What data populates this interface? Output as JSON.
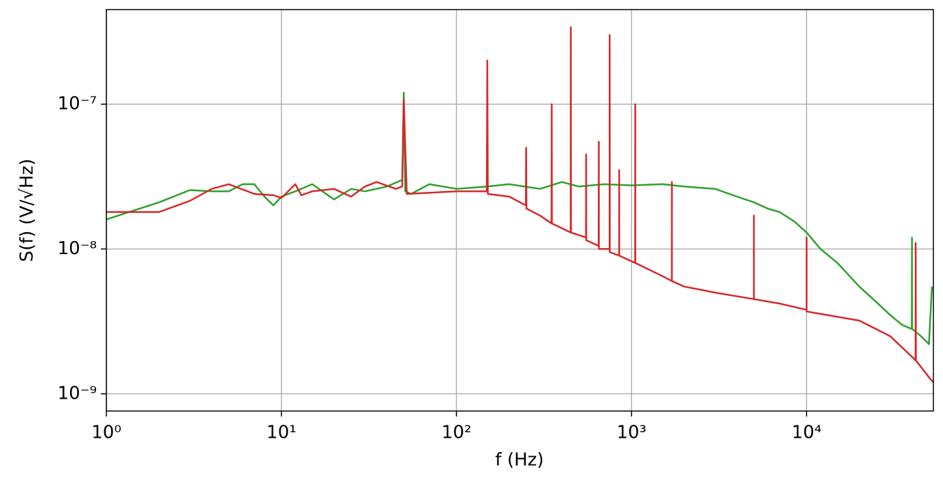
{
  "chart_data": {
    "type": "line",
    "xlabel": "f (Hz)",
    "ylabel": "S(f) (V/√Hz)",
    "xscale": "log",
    "yscale": "log",
    "grid": true,
    "xlim": [
      1,
      53000
    ],
    "ylim": [
      7.6e-10,
      4.5e-07
    ],
    "xticks": [
      {
        "value": 1,
        "label": "10⁰"
      },
      {
        "value": 10,
        "label": "10¹"
      },
      {
        "value": 100,
        "label": "10²"
      },
      {
        "value": 1000,
        "label": "10³"
      },
      {
        "value": 10000,
        "label": "10⁴"
      }
    ],
    "yticks": [
      {
        "value": 1e-09,
        "label": "10⁻⁹"
      },
      {
        "value": 1e-08,
        "label": "10⁻⁸"
      },
      {
        "value": 1e-07,
        "label": "10⁻⁷"
      }
    ],
    "series": [
      {
        "color": "#2ca02c",
        "x": [
          1,
          2,
          3,
          4,
          5,
          6,
          7,
          8,
          9,
          10,
          12,
          15,
          18,
          20,
          25,
          30,
          40,
          49,
          50,
          51,
          55,
          70,
          100,
          150,
          200,
          300,
          400,
          500,
          700,
          1000,
          1500,
          2000,
          3000,
          4000,
          5000,
          6000,
          7000,
          8500,
          10000,
          12000,
          15000,
          17000,
          20000,
          25000,
          30000,
          35000,
          39900,
          40000,
          40100,
          45000,
          50000,
          52000
        ],
        "values": [
          1.6e-08,
          2.1e-08,
          2.55e-08,
          2.5e-08,
          2.5e-08,
          2.8e-08,
          2.8e-08,
          2.3e-08,
          2e-08,
          2.3e-08,
          2.5e-08,
          2.8e-08,
          2.4e-08,
          2.2e-08,
          2.6e-08,
          2.5e-08,
          2.7e-08,
          3e-08,
          1.2e-07,
          2.5e-08,
          2.4e-08,
          2.8e-08,
          2.6e-08,
          2.7e-08,
          2.8e-08,
          2.6e-08,
          2.9e-08,
          2.7e-08,
          2.8e-08,
          2.75e-08,
          2.8e-08,
          2.7e-08,
          2.6e-08,
          2.3e-08,
          2.1e-08,
          1.9e-08,
          1.8e-08,
          1.55e-08,
          1.3e-08,
          1e-08,
          8e-09,
          6.8e-09,
          5.5e-09,
          4.3e-09,
          3.5e-09,
          3e-09,
          2.8e-09,
          1.2e-08,
          2.8e-09,
          2.5e-09,
          2.2e-09,
          5.5e-09
        ]
      },
      {
        "color": "#d62728",
        "x": [
          1,
          2,
          3,
          4,
          5,
          7,
          9,
          10,
          12,
          13,
          15,
          20,
          25,
          30,
          35,
          45,
          49,
          50,
          52,
          100,
          149,
          150,
          151,
          200,
          249,
          250,
          251,
          300,
          349,
          350,
          351,
          449,
          450,
          451,
          549,
          550,
          551,
          649,
          650,
          651,
          749,
          750,
          751,
          849,
          850,
          851,
          1049,
          1050,
          1051,
          1500,
          1699,
          1700,
          1701,
          2000,
          3000,
          4999,
          5000,
          5001,
          7000,
          9999,
          10000,
          10001,
          15000,
          20000,
          30000,
          40000,
          41900,
          42000,
          42100,
          50000,
          53000
        ],
        "values": [
          1.8e-08,
          1.8e-08,
          2.15e-08,
          2.6e-08,
          2.8e-08,
          2.4e-08,
          2.35e-08,
          2.25e-08,
          2.8e-08,
          2.35e-08,
          2.5e-08,
          2.6e-08,
          2.3e-08,
          2.7e-08,
          2.9e-08,
          2.6e-08,
          2.7e-08,
          1.08e-07,
          2.4e-08,
          2.5e-08,
          2.5e-08,
          2e-07,
          2.4e-08,
          2.3e-08,
          2e-08,
          5e-08,
          1.9e-08,
          1.7e-08,
          1.5e-08,
          1e-07,
          1.5e-08,
          1.3e-08,
          3.4e-07,
          1.3e-08,
          1.2e-08,
          4.5e-08,
          1.15e-08,
          1.05e-08,
          5.5e-08,
          1e-08,
          1e-08,
          3e-07,
          9.5e-09,
          9e-09,
          3.5e-08,
          9e-09,
          8e-09,
          1e-07,
          8e-09,
          6.5e-09,
          6e-09,
          2.9e-08,
          6e-09,
          5.5e-09,
          5e-09,
          4.5e-09,
          1.7e-08,
          4.5e-09,
          4.2e-09,
          3.8e-09,
          1.2e-08,
          3.7e-09,
          3.4e-09,
          3.2e-09,
          2.5e-09,
          1.8e-09,
          1.7e-09,
          1.1e-08,
          1.7e-09,
          1.3e-09,
          1.2e-09
        ]
      }
    ]
  }
}
